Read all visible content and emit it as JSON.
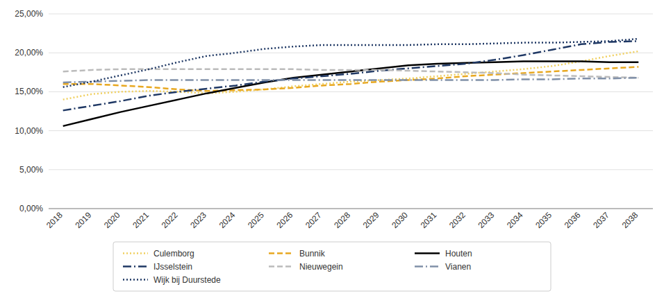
{
  "chart_data": {
    "type": "line",
    "categories": [
      "2018",
      "2019",
      "2020",
      "2021",
      "2022",
      "2023",
      "2024",
      "2025",
      "2026",
      "2027",
      "2028",
      "2029",
      "2030",
      "2031",
      "2032",
      "2033",
      "2034",
      "2035",
      "2036",
      "2037",
      "2038"
    ],
    "series": [
      {
        "name": "Culemborg",
        "color": "#f0d060",
        "line_style": "dotted",
        "values": [
          0.14,
          0.147,
          0.15,
          0.151,
          0.15,
          0.148,
          0.15,
          0.153,
          0.157,
          0.16,
          0.163,
          0.165,
          0.167,
          0.17,
          0.173,
          0.176,
          0.179,
          0.183,
          0.189,
          0.196,
          0.202
        ]
      },
      {
        "name": "Bunnik",
        "color": "#e8a820",
        "line_style": "dashed",
        "values": [
          0.16,
          0.16,
          0.158,
          0.156,
          0.153,
          0.151,
          0.152,
          0.153,
          0.155,
          0.158,
          0.16,
          0.163,
          0.165,
          0.167,
          0.17,
          0.172,
          0.174,
          0.176,
          0.178,
          0.18,
          0.182
        ]
      },
      {
        "name": "Houten",
        "color": "#000000",
        "line_style": "solid",
        "values": [
          0.106,
          0.115,
          0.124,
          0.132,
          0.14,
          0.148,
          0.155,
          0.162,
          0.168,
          0.172,
          0.176,
          0.18,
          0.184,
          0.186,
          0.187,
          0.188,
          0.189,
          0.189,
          0.189,
          0.188,
          0.188
        ]
      },
      {
        "name": "IJsselstein",
        "color": "#1f3864",
        "line_style": "dashdot",
        "values": [
          0.126,
          0.132,
          0.138,
          0.145,
          0.15,
          0.154,
          0.158,
          0.163,
          0.167,
          0.17,
          0.173,
          0.177,
          0.18,
          0.183,
          0.186,
          0.191,
          0.197,
          0.204,
          0.211,
          0.214,
          0.215
        ]
      },
      {
        "name": "Nieuwegein",
        "color": "#bbbbbb",
        "line_style": "dashed",
        "values": [
          0.176,
          0.178,
          0.179,
          0.179,
          0.179,
          0.179,
          0.179,
          0.179,
          0.179,
          0.178,
          0.178,
          0.178,
          0.177,
          0.176,
          0.175,
          0.174,
          0.172,
          0.171,
          0.17,
          0.169,
          0.168
        ]
      },
      {
        "name": "Vianen",
        "color": "#8090a8",
        "line_style": "dashdot",
        "values": [
          0.162,
          0.163,
          0.164,
          0.165,
          0.165,
          0.165,
          0.165,
          0.165,
          0.165,
          0.165,
          0.165,
          0.165,
          0.165,
          0.165,
          0.165,
          0.165,
          0.166,
          0.166,
          0.167,
          0.167,
          0.168
        ]
      },
      {
        "name": "Wijk bij Duurstede",
        "color": "#1f3864",
        "line_style": "dotted",
        "values": [
          0.156,
          0.163,
          0.171,
          0.179,
          0.188,
          0.196,
          0.2,
          0.205,
          0.208,
          0.21,
          0.21,
          0.21,
          0.21,
          0.211,
          0.211,
          0.212,
          0.213,
          0.213,
          0.214,
          0.215,
          0.218
        ]
      }
    ],
    "ylim": [
      0.0,
      0.25
    ],
    "yticks": [
      {
        "value": 0.0,
        "label": "0,00%"
      },
      {
        "value": 0.05,
        "label": "5,00%"
      },
      {
        "value": 0.1,
        "label": "10,00%"
      },
      {
        "value": 0.15,
        "label": "15,00%"
      },
      {
        "value": 0.2,
        "label": "20,00%"
      },
      {
        "value": 0.25,
        "label": "25,00%"
      }
    ],
    "grid": true,
    "legend": "bottom"
  }
}
